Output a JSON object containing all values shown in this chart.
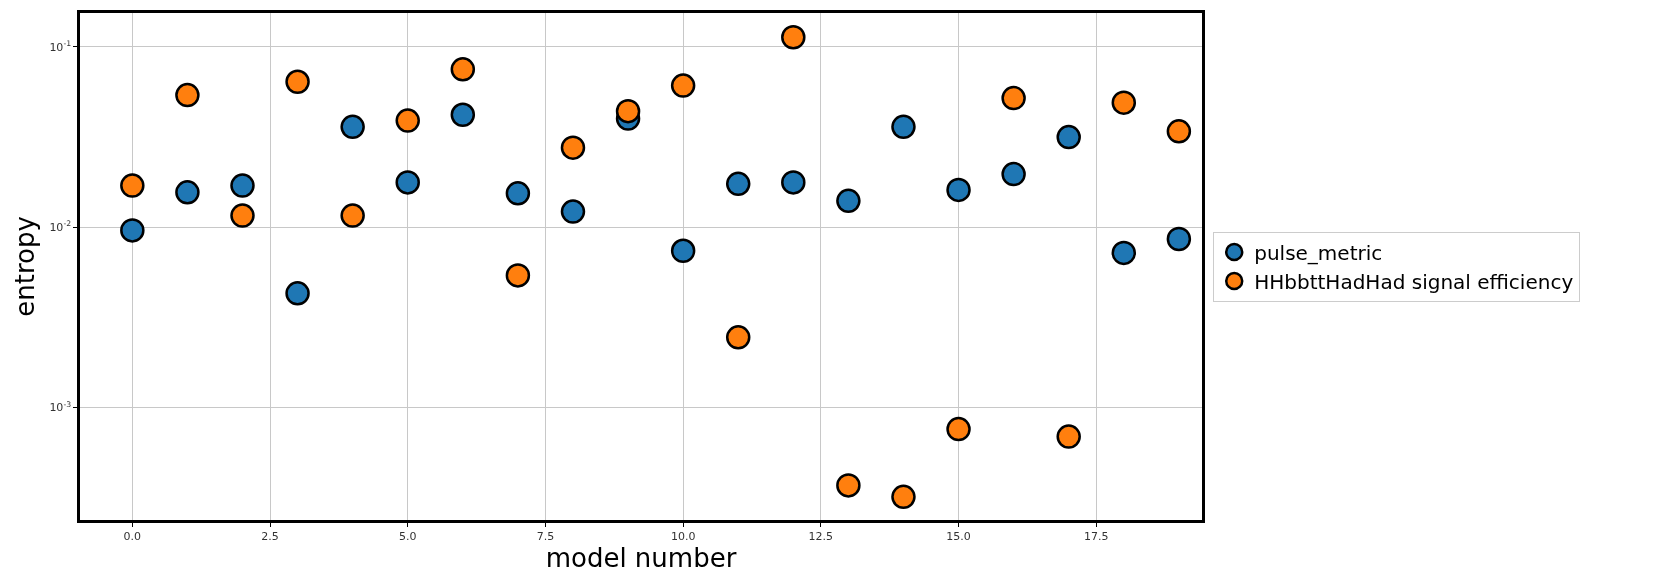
{
  "chart_data": {
    "type": "scatter",
    "xlabel": "model number",
    "ylabel": "entropy",
    "log": "y",
    "x": [
      0,
      1,
      2,
      3,
      4,
      5,
      6,
      7,
      8,
      9,
      10,
      11,
      12,
      13,
      14,
      15,
      16,
      17,
      18,
      19
    ],
    "series": [
      {
        "name": "pulse_metric",
        "color": "#1f77b4",
        "values": [
          0.0096,
          0.0156,
          0.017,
          0.0043,
          0.036,
          0.0177,
          0.042,
          0.0154,
          0.0122,
          0.04,
          0.0074,
          0.0174,
          0.0177,
          0.014,
          0.036,
          0.0161,
          0.0197,
          0.0316,
          0.0072,
          0.0086
        ]
      },
      {
        "name": "HHbbttHadHad signal efficiency",
        "color": "#ff7f0e",
        "values": [
          0.017,
          0.054,
          0.0116,
          0.064,
          0.0116,
          0.039,
          0.075,
          0.0054,
          0.0276,
          0.044,
          0.061,
          0.00245,
          0.113,
          0.00037,
          0.00032,
          0.00076,
          0.052,
          0.00069,
          0.049,
          0.034
        ]
      }
    ],
    "xlim": [
      -0.95,
      19.42
    ],
    "xticks": [
      {
        "value": 0,
        "label": "0.0"
      },
      {
        "value": 2.5,
        "label": "2.5"
      },
      {
        "value": 5,
        "label": "5.0"
      },
      {
        "value": 7.5,
        "label": "7.5"
      },
      {
        "value": 10,
        "label": "10.0"
      },
      {
        "value": 12.5,
        "label": "12.5"
      },
      {
        "value": 15,
        "label": "15.0"
      },
      {
        "value": 17.5,
        "label": "17.5"
      }
    ],
    "ylim": [
      0.000238,
      0.154
    ],
    "yticks": [
      {
        "value": 0.001,
        "label": "10$^{-3}$"
      },
      {
        "value": 0.01,
        "label": "10$^{-2}$"
      },
      {
        "value": 0.1,
        "label": "10$^{-1}$"
      }
    ],
    "grid": true,
    "legend": "right",
    "marker": "circle"
  }
}
